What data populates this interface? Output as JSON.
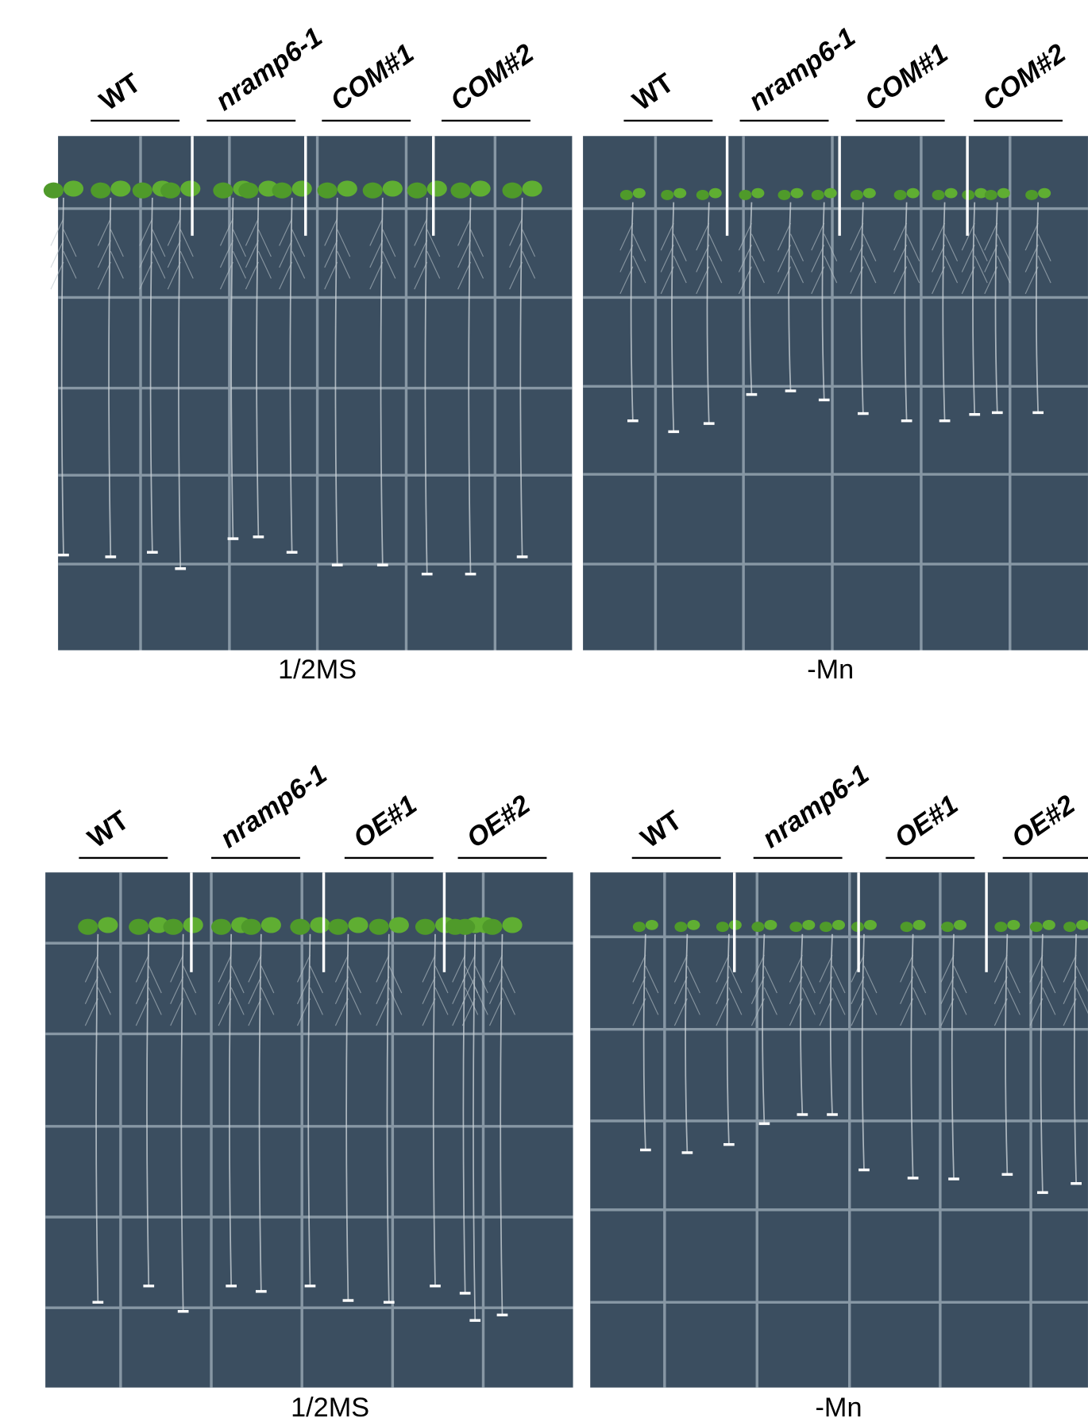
{
  "panels": [
    {
      "caption": "1/2MS",
      "labels": [
        "WT",
        "nramp6-1",
        "COM#1",
        "COM#2"
      ]
    },
    {
      "caption": "-Mn",
      "labels": [
        "WT",
        "nramp6-1",
        "COM#1",
        "COM#2"
      ]
    },
    {
      "caption": "1/2MS",
      "labels": [
        "WT",
        "nramp6-1",
        "OE#1",
        "OE#2"
      ]
    },
    {
      "caption": "-Mn",
      "labels": [
        "WT",
        "nramp6-1",
        "OE#1",
        "OE#2"
      ]
    }
  ]
}
